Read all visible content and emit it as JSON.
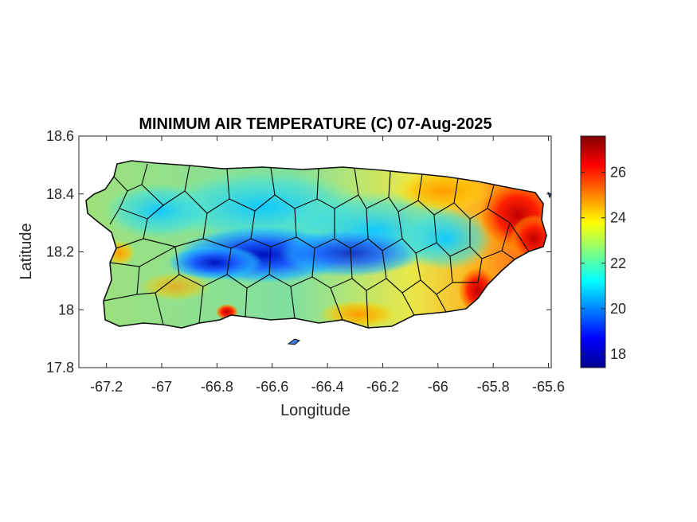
{
  "chart_data": {
    "type": "heatmap",
    "title": "MINIMUM AIR TEMPERATURE (C) 07-Aug-2025",
    "xlabel": "Longitude",
    "ylabel": "Latitude",
    "xlim": [
      -67.3,
      -65.59
    ],
    "ylim": [
      17.8,
      18.6
    ],
    "x_ticks": [
      -67.2,
      -67,
      -66.8,
      -66.6,
      -66.4,
      -66.2,
      -66,
      -65.8,
      -65.6
    ],
    "x_tick_labels": [
      "-67.2",
      "-67",
      "-66.8",
      "-66.6",
      "-66.4",
      "-66.2",
      "-66",
      "-65.8",
      "-65.6"
    ],
    "y_ticks": [
      17.8,
      18,
      18.2,
      18.4,
      18.6
    ],
    "y_tick_labels": [
      "17.8",
      "18",
      "18.2",
      "18.4",
      "18.6"
    ],
    "colorbar": {
      "colormap": "jet",
      "range": [
        17.4,
        27.6
      ],
      "ticks": [
        18,
        20,
        22,
        24,
        26
      ],
      "tick_labels": [
        "18",
        "20",
        "22",
        "24",
        "26"
      ]
    },
    "grid": false,
    "region": "Puerto Rico"
  }
}
